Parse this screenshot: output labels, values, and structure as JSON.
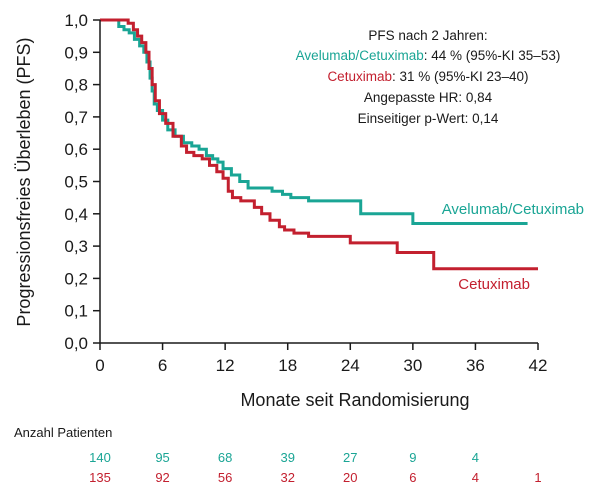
{
  "chart_data": {
    "type": "line",
    "step": true,
    "xlabel": "Monate seit Randomisierung",
    "ylabel": "Progressionsfreies Überleben (PFS)",
    "xlim": [
      0,
      42
    ],
    "ylim": [
      0,
      1
    ],
    "xticks": [
      0,
      6,
      12,
      18,
      24,
      30,
      36,
      42
    ],
    "xtick_labels": [
      "0",
      "6",
      "12",
      "18",
      "24",
      "30",
      "36",
      "42"
    ],
    "yticks": [
      0,
      0.1,
      0.2,
      0.3,
      0.4,
      0.5,
      0.6,
      0.7,
      0.8,
      0.9,
      1.0
    ],
    "ytick_labels": [
      "0,0",
      "0,1",
      "0,2",
      "0,3",
      "0,4",
      "0,5",
      "0,6",
      "0,7",
      "0,8",
      "0,9",
      "1,0"
    ],
    "grid": false,
    "series": [
      {
        "name": "Avelumab/Cetuximab",
        "color": "#1aa595",
        "x": [
          0,
          1.8,
          2.3,
          2.8,
          3.3,
          3.8,
          4.2,
          4.5,
          4.8,
          5.0,
          5.2,
          5.5,
          6.0,
          6.5,
          7.2,
          8.0,
          8.8,
          9.5,
          10.2,
          10.8,
          11.3,
          11.8,
          12.6,
          13.4,
          14.2,
          15.0,
          16.5,
          17.5,
          18.3,
          20.0,
          24.0,
          25.0,
          29.0,
          30.0,
          33.0,
          41.0
        ],
        "y": [
          1.0,
          0.98,
          0.97,
          0.96,
          0.94,
          0.92,
          0.9,
          0.87,
          0.82,
          0.78,
          0.74,
          0.72,
          0.69,
          0.66,
          0.64,
          0.62,
          0.61,
          0.6,
          0.58,
          0.57,
          0.56,
          0.54,
          0.52,
          0.5,
          0.48,
          0.48,
          0.47,
          0.46,
          0.45,
          0.44,
          0.44,
          0.4,
          0.4,
          0.37,
          0.37,
          0.37
        ]
      },
      {
        "name": "Cetuximab",
        "color": "#c3202f",
        "x": [
          0,
          1.5,
          2.7,
          3.2,
          3.6,
          4.0,
          4.4,
          4.7,
          5.0,
          5.3,
          5.7,
          6.3,
          7.0,
          7.8,
          8.3,
          9.0,
          9.8,
          10.5,
          11.2,
          11.8,
          12.3,
          12.7,
          13.5,
          14.8,
          15.5,
          16.3,
          17.2,
          17.7,
          18.6,
          20.0,
          22.0,
          24.0,
          27.5,
          28.5,
          29.5,
          32.0,
          32.5,
          34.0,
          42.0
        ],
        "y": [
          1.0,
          1.0,
          0.99,
          0.97,
          0.95,
          0.93,
          0.9,
          0.85,
          0.8,
          0.75,
          0.71,
          0.68,
          0.64,
          0.61,
          0.59,
          0.58,
          0.57,
          0.55,
          0.53,
          0.51,
          0.47,
          0.45,
          0.44,
          0.42,
          0.4,
          0.38,
          0.36,
          0.35,
          0.34,
          0.33,
          0.33,
          0.31,
          0.31,
          0.28,
          0.28,
          0.23,
          0.23,
          0.23,
          0.23
        ]
      }
    ],
    "labels": {
      "avelumab": "Avelumab/Cetuximab",
      "cetuximab": "Cetuximab"
    },
    "annotation": {
      "title": "PFS nach 2 Jahren:",
      "line1_name": "Avelumab/Cetuximab",
      "line1_rest": ": 44 % (95%-KI 35–53)",
      "line2_name": "Cetuximab",
      "line2_rest": ": 31 % (95%-KI 23–40)",
      "line3": "Angepasste HR: 0,84",
      "line4": "Einseitiger p-Wert: 0,14"
    },
    "risk_table": {
      "title": "Anzahl Patienten",
      "avelumab": [
        {
          "month": 0,
          "value": "140"
        },
        {
          "month": 6,
          "value": "95"
        },
        {
          "month": 12,
          "value": "68"
        },
        {
          "month": 18,
          "value": "39"
        },
        {
          "month": 24,
          "value": "27"
        },
        {
          "month": 30,
          "value": "9"
        },
        {
          "month": 36,
          "value": "4"
        }
      ],
      "cetuximab": [
        {
          "month": 0,
          "value": "135"
        },
        {
          "month": 6,
          "value": "92"
        },
        {
          "month": 12,
          "value": "56"
        },
        {
          "month": 18,
          "value": "32"
        },
        {
          "month": 24,
          "value": "20"
        },
        {
          "month": 30,
          "value": "6"
        },
        {
          "month": 36,
          "value": "4"
        },
        {
          "month": 42,
          "value": "1"
        }
      ]
    }
  }
}
